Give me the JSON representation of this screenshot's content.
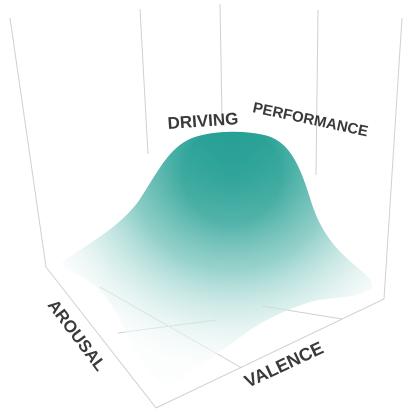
{
  "chart_data": {
    "type": "surface",
    "title_words": [
      "DRIVING",
      "PERFORMANCE"
    ],
    "xlabel": "VALENCE",
    "ylabel": "AROUSAL",
    "zlabel": "",
    "grid": true,
    "surface_color": "#1a9a8e",
    "grid_color": "#cfcfcf"
  }
}
